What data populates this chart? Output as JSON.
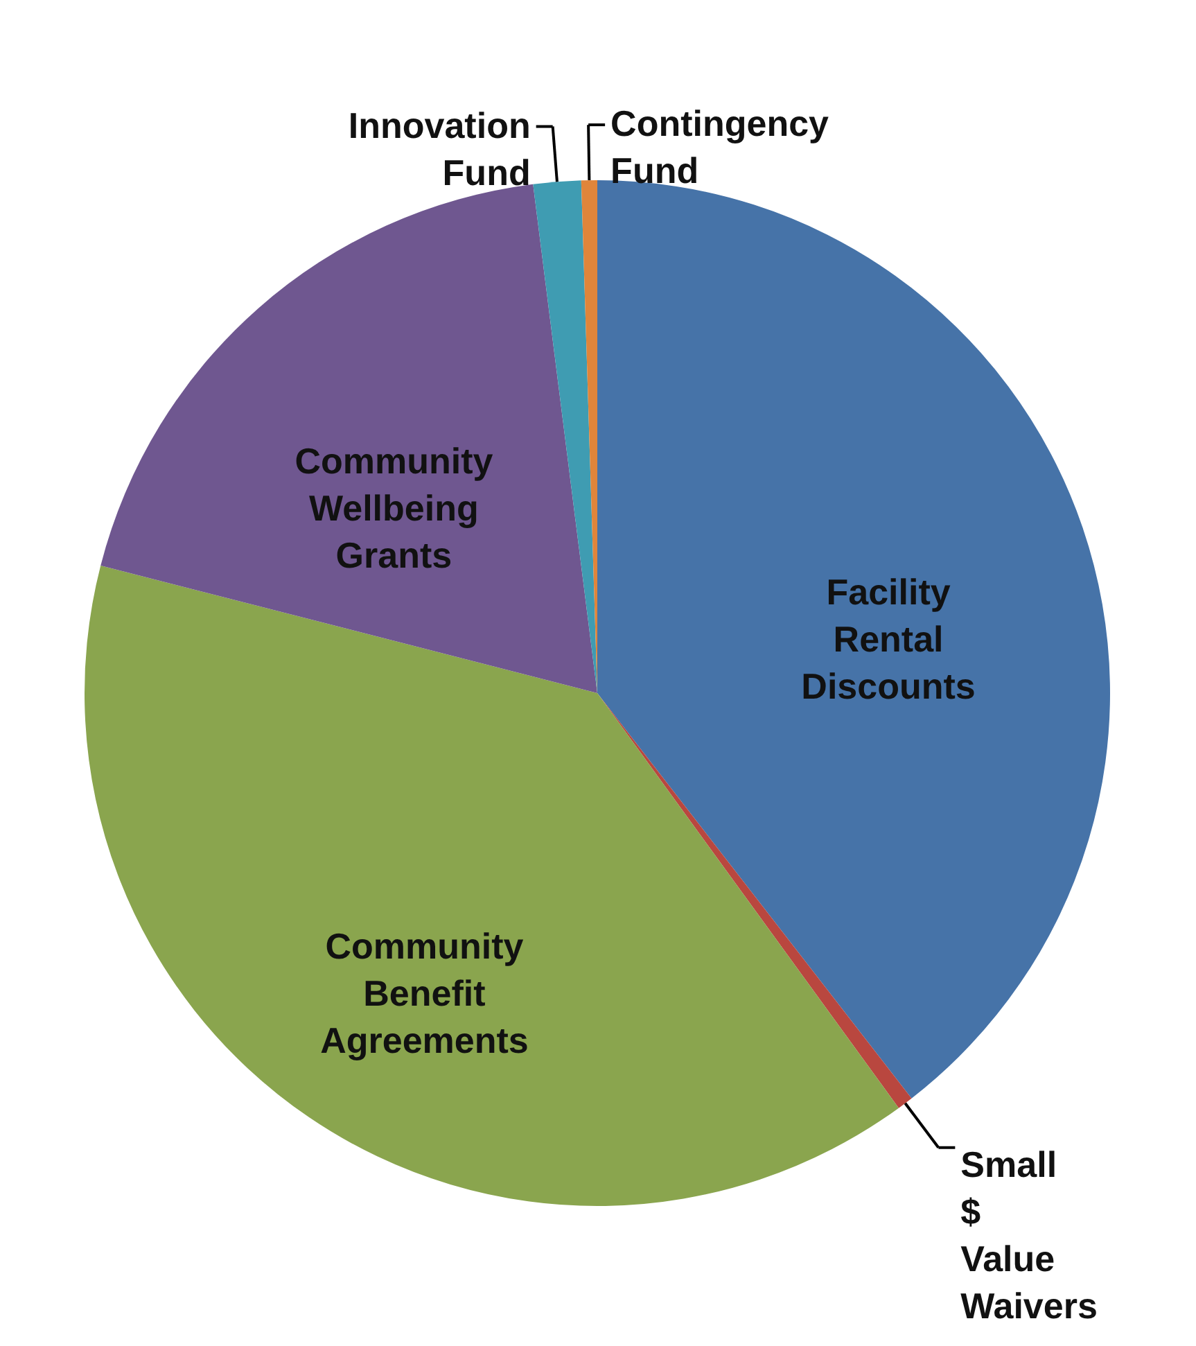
{
  "chart_data": {
    "type": "pie",
    "categories": [
      "Facility Rental Discounts",
      "Small $ Value Waivers",
      "Community Benefit Agreements",
      "Community Wellbeing Grants",
      "Innovation Fund",
      "Contingency Fund"
    ],
    "values": [
      39.5,
      0.5,
      39,
      19,
      1.5,
      0.5
    ],
    "colors": [
      "#4673a8",
      "#b9473f",
      "#8aa54e",
      "#6f5790",
      "#3f9cb2",
      "#e0853a"
    ]
  }
}
